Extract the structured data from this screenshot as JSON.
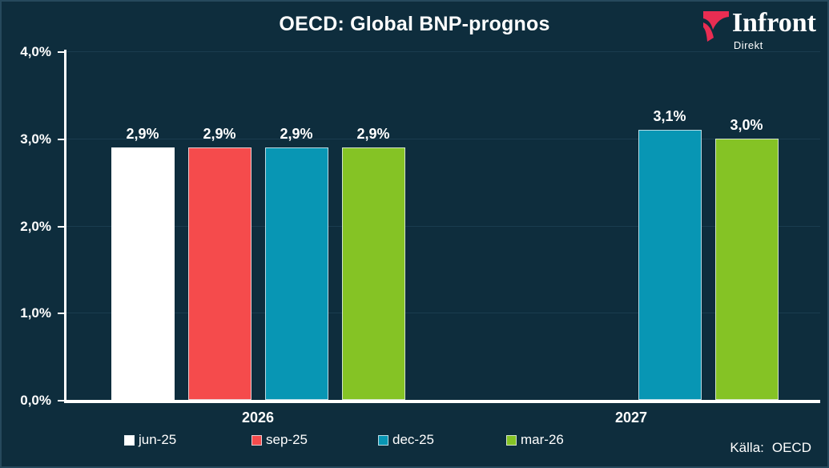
{
  "header": {
    "title": "OECD: Global BNP-prognos"
  },
  "logo": {
    "name": "Infront",
    "sub": "Direkt",
    "mark_color": "#e92d52"
  },
  "source": {
    "label": "Källa:",
    "value": "OECD"
  },
  "colors": {
    "background": "#0e2d3d",
    "frame_border": "#26495c",
    "axis": "#ffffff",
    "gridline": "#1a3c4f",
    "text": "#ffffff"
  },
  "chart_data": {
    "type": "bar",
    "title": "OECD: Global BNP-prognos",
    "categories": [
      "2026",
      "2027"
    ],
    "series": [
      {
        "name": "jun-25",
        "color": "#ffffff",
        "values": [
          2.9,
          null
        ],
        "labels": [
          "2,9%",
          null
        ]
      },
      {
        "name": "sep-25",
        "color": "#f54b4c",
        "values": [
          2.9,
          null
        ],
        "labels": [
          "2,9%",
          null
        ]
      },
      {
        "name": "dec-25",
        "color": "#0896b4",
        "values": [
          2.9,
          3.1
        ],
        "labels": [
          "2,9%",
          "3,1%"
        ]
      },
      {
        "name": "mar-26",
        "color": "#85c325",
        "values": [
          2.9,
          3.0
        ],
        "labels": [
          "2,9%",
          "3,0%"
        ]
      }
    ],
    "ylabel": "",
    "xlabel": "",
    "ylim": [
      0,
      4
    ],
    "yticks": [
      "0,0%",
      "1,0%",
      "2,0%",
      "3,0%",
      "4,0%"
    ],
    "grid": "horizontal-faint",
    "legend_position": "bottom",
    "value_labels_shown": true
  }
}
